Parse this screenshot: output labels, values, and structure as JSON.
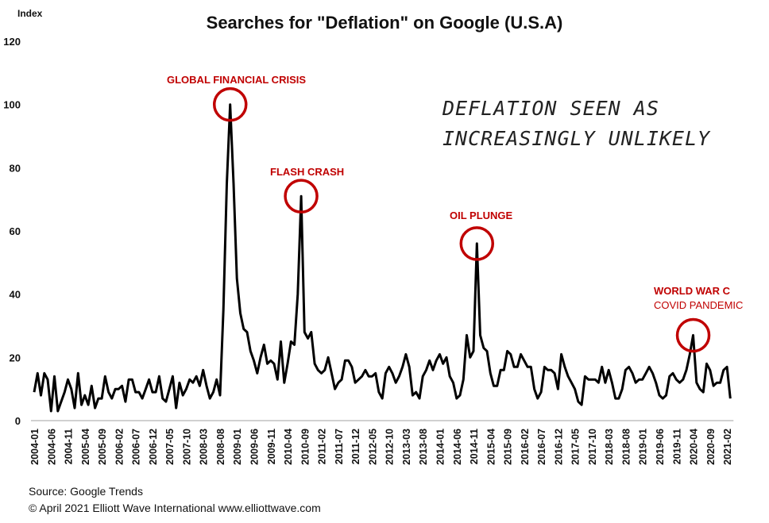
{
  "chart_data": {
    "type": "line",
    "title": "Searches for \"Deflation\" on Google (U.S.A)",
    "ylabel": "Index",
    "xlabel": "",
    "ylim": [
      0,
      120
    ],
    "yticks": [
      0,
      20,
      40,
      60,
      80,
      100,
      120
    ],
    "grid": false,
    "start": "2004-01",
    "x_tick_labels": [
      "2004-01",
      "2004-06",
      "2004-11",
      "2005-04",
      "2005-09",
      "2006-02",
      "2006-07",
      "2006-12",
      "2007-05",
      "2007-10",
      "2008-03",
      "2008-08",
      "2009-01",
      "2009-06",
      "2009-11",
      "2010-04",
      "2010-09",
      "2011-02",
      "2011-07",
      "2011-12",
      "2012-05",
      "2012-10",
      "2013-03",
      "2013-08",
      "2014-01",
      "2014-06",
      "2014-11",
      "2015-04",
      "2015-09",
      "2016-02",
      "2016-07",
      "2016-12",
      "2017-05",
      "2017-10",
      "2018-03",
      "2018-08",
      "2019-01",
      "2019-06",
      "2019-11",
      "2020-04",
      "2020-09",
      "2021-02"
    ],
    "values": [
      9,
      15,
      8,
      15,
      13,
      3,
      14,
      3,
      6,
      9,
      13,
      10,
      4,
      15,
      5,
      8,
      5,
      11,
      4,
      7,
      7,
      14,
      9,
      7,
      10,
      10,
      11,
      6,
      13,
      13,
      9,
      9,
      7,
      10,
      13,
      9,
      9,
      14,
      7,
      6,
      10,
      14,
      4,
      12,
      8,
      10,
      13,
      12,
      14,
      11,
      16,
      11,
      7,
      9,
      13,
      8,
      35,
      75,
      100,
      75,
      45,
      34,
      29,
      28,
      22,
      19,
      15,
      20,
      24,
      18,
      19,
      18,
      13,
      25,
      12,
      18,
      25,
      24,
      40,
      71,
      28,
      26,
      28,
      18,
      16,
      15,
      16,
      20,
      15,
      10,
      12,
      13,
      19,
      19,
      17,
      12,
      13,
      14,
      16,
      14,
      14,
      15,
      9,
      7,
      15,
      17,
      15,
      12,
      14,
      17,
      21,
      17,
      8,
      9,
      7,
      14,
      16,
      19,
      16,
      19,
      21,
      18,
      20,
      14,
      12,
      7,
      8,
      13,
      27,
      20,
      22,
      56,
      27,
      23,
      22,
      15,
      11,
      11,
      16,
      16,
      22,
      21,
      17,
      17,
      21,
      19,
      17,
      17,
      10,
      7,
      9,
      17,
      16,
      16,
      15,
      10,
      21,
      17,
      14,
      12,
      10,
      6,
      5,
      14,
      13,
      13,
      13,
      12,
      17,
      12,
      16,
      12,
      7,
      7,
      10,
      16,
      17,
      15,
      12,
      13,
      13,
      15,
      17,
      15,
      12,
      8,
      7,
      8,
      14,
      15,
      13,
      12,
      13,
      16,
      21,
      27,
      12,
      10,
      9,
      18,
      16,
      11,
      12,
      12,
      16,
      17,
      7
    ],
    "annotations": {
      "gfc": "GLOBAL FINANCIAL CRISIS",
      "flash": "FLASH CRASH",
      "oil": "OIL PLUNGE",
      "covid_1": "WORLD WAR C",
      "covid_2": "COVID PANDEMIC",
      "note_1": "DEFLATION SEEN AS",
      "note_2": "INCREASINGLY UNLIKELY"
    },
    "highlighted_points": [
      58,
      79,
      131,
      195
    ],
    "colors": {
      "line": "#000000",
      "annotation": "#c00000",
      "axis": "#d0d0d0"
    }
  },
  "footer": {
    "source": "Source: Google Trends",
    "copyright": "© April 2021   Elliott Wave International    www.elliottwave.com"
  }
}
